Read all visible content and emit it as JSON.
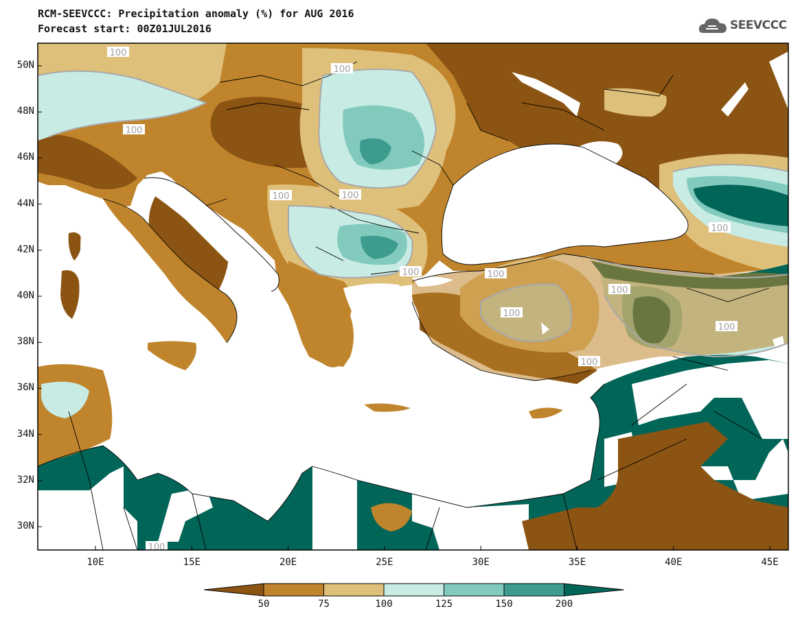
{
  "title": "RCM-SEEVCCC: Precipitation anomaly (%) for AUG 2016",
  "subtitle": "Forecast start: 00Z01JUL2016",
  "logo": {
    "icon": "cloud-logo-icon",
    "text": "SEEVCCC"
  },
  "axes": {
    "y_labels": [
      "50N",
      "48N",
      "46N",
      "44N",
      "42N",
      "40N",
      "38N",
      "36N",
      "34N",
      "32N",
      "30N"
    ],
    "x_labels": [
      "10E",
      "15E",
      "20E",
      "25E",
      "30E",
      "35E",
      "40E",
      "45E"
    ]
  },
  "contour_label": "100",
  "colorbar": {
    "labels": [
      "50",
      "75",
      "100",
      "125",
      "150",
      "200"
    ],
    "colors": [
      "#8c5412",
      "#c0852c",
      "#dfc07a",
      "#c8ece4",
      "#82cabd",
      "#3d9c8e",
      "#016558"
    ]
  },
  "colors": {
    "sea": "#ffffff",
    "outline": "#000000",
    "contour": "#a8a8a8"
  }
}
